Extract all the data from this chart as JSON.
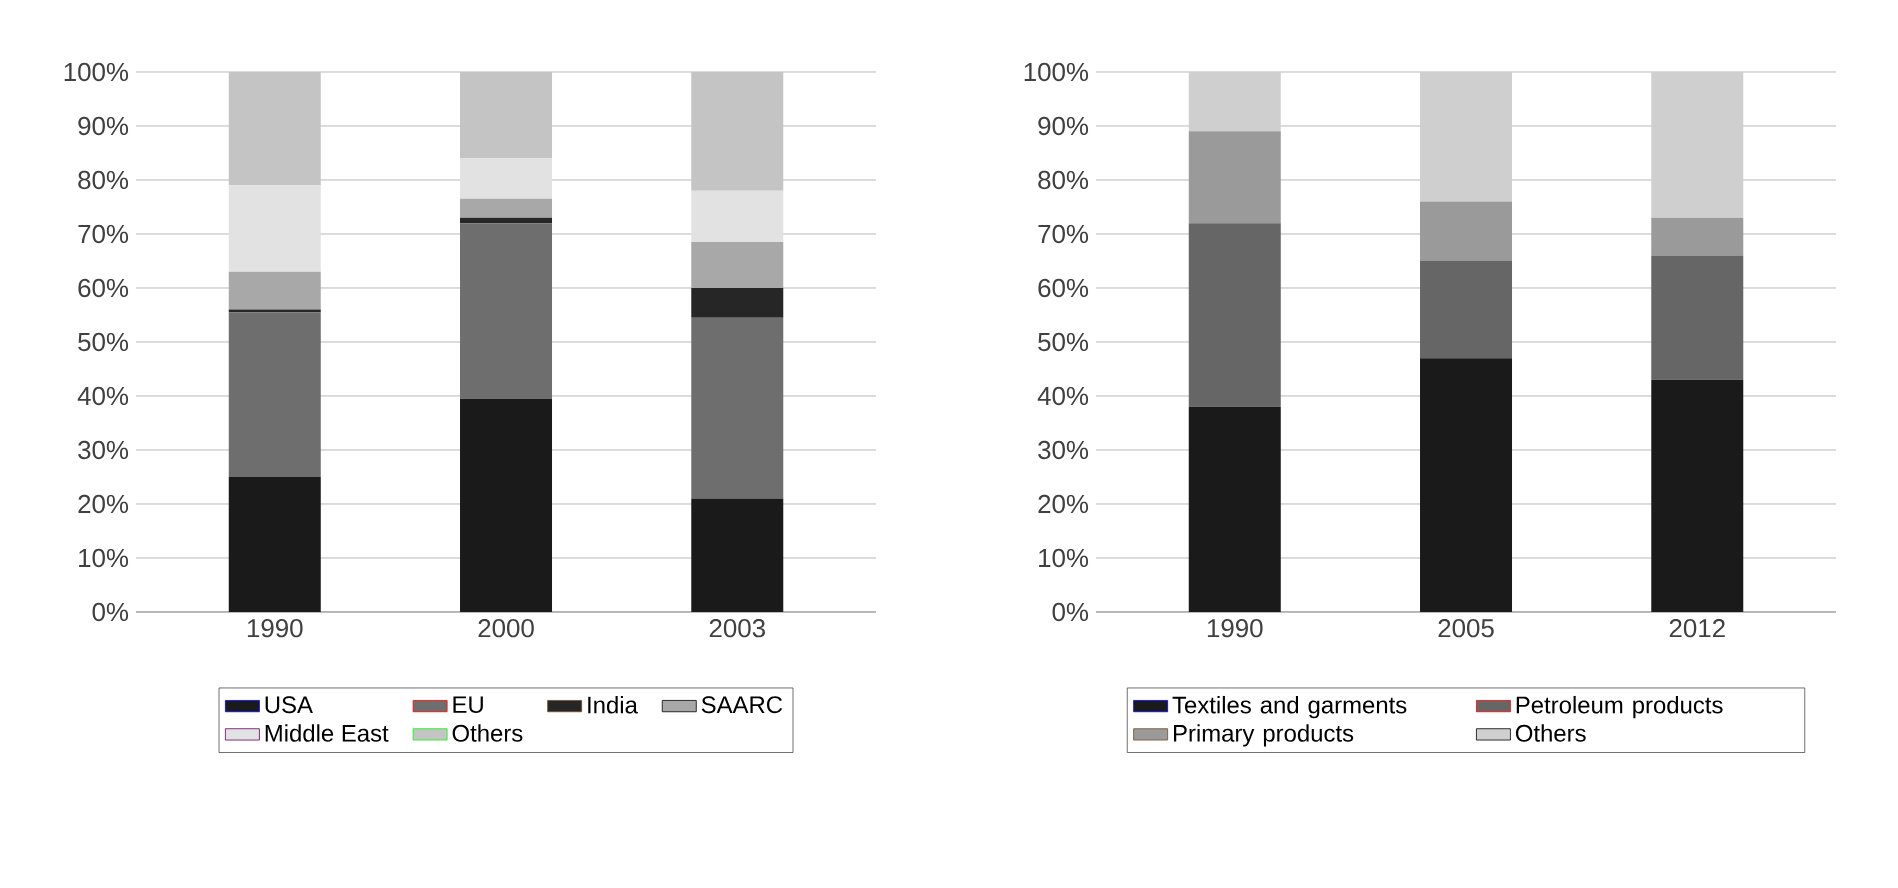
{
  "chart_data": [
    {
      "type": "bar",
      "stacked": true,
      "categories": [
        "1990",
        "2000",
        "2003"
      ],
      "series": [
        {
          "name": "USA",
          "color": "#1a1a1a",
          "values": [
            25,
            39.5,
            21
          ]
        },
        {
          "name": "EU",
          "color": "#6e6e6e",
          "values": [
            30.5,
            32.5,
            33.5
          ]
        },
        {
          "name": "India",
          "color": "#262626",
          "values": [
            0.5,
            1,
            5.5
          ]
        },
        {
          "name": "SAARC",
          "color": "#a8a8a8",
          "values": [
            7,
            3.5,
            8.5
          ]
        },
        {
          "name": "Middle East",
          "color": "#e2e2e2",
          "values": [
            16,
            7.5,
            9.5
          ]
        },
        {
          "name": "Others",
          "color": "#c4c4c4",
          "values": [
            21,
            16,
            22
          ]
        }
      ],
      "ylim": [
        0,
        100
      ],
      "yticks": [
        {
          "value": 0,
          "label": "0%"
        },
        {
          "value": 10,
          "label": "10%"
        },
        {
          "value": 20,
          "label": "20%"
        },
        {
          "value": 30,
          "label": "30%"
        },
        {
          "value": 40,
          "label": "40%"
        },
        {
          "value": 50,
          "label": "50%"
        },
        {
          "value": 60,
          "label": "60%"
        },
        {
          "value": 70,
          "label": "70%"
        },
        {
          "value": 80,
          "label": "80%"
        },
        {
          "value": 90,
          "label": "90%"
        },
        {
          "value": 100,
          "label": "100%"
        }
      ],
      "grid": "y",
      "legend": "bottom"
    },
    {
      "type": "bar",
      "stacked": true,
      "categories": [
        "1990",
        "2005",
        "2012"
      ],
      "series": [
        {
          "name": "Textiles and garments",
          "color": "#1a1a1a",
          "values": [
            38,
            47,
            43
          ]
        },
        {
          "name": "Petroleum products",
          "color": "#666666",
          "values": [
            34,
            18,
            23
          ]
        },
        {
          "name": "Primary products",
          "color": "#9a9a9a",
          "values": [
            17,
            11,
            7
          ]
        },
        {
          "name": "Others",
          "color": "#cfcfcf",
          "values": [
            11,
            24,
            27
          ]
        }
      ],
      "ylim": [
        0,
        100
      ],
      "yticks": [
        {
          "value": 0,
          "label": "0%"
        },
        {
          "value": 10,
          "label": "10%"
        },
        {
          "value": 20,
          "label": "20%"
        },
        {
          "value": 30,
          "label": "30%"
        },
        {
          "value": 40,
          "label": "40%"
        },
        {
          "value": 50,
          "label": "50%"
        },
        {
          "value": 60,
          "label": "60%"
        },
        {
          "value": 70,
          "label": "70%"
        },
        {
          "value": 80,
          "label": "80%"
        },
        {
          "value": 90,
          "label": "90%"
        },
        {
          "value": 100,
          "label": "100%"
        }
      ],
      "grid": "y",
      "legend": "bottom"
    }
  ]
}
